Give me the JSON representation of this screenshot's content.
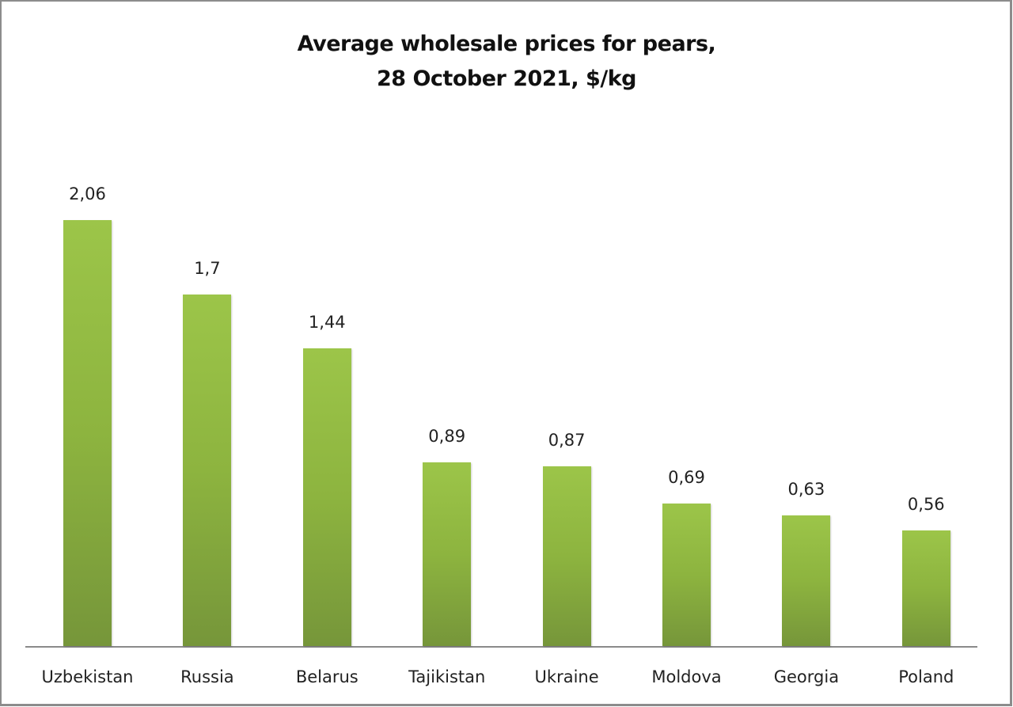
{
  "chart_data": {
    "type": "bar",
    "title": "Average wholesale prices for pears, 28 October 2021, $/kg",
    "title_lines": [
      "Average wholesale prices for pears,",
      "28 October 2021, $/kg"
    ],
    "categories": [
      "Uzbekistan",
      "Russia",
      "Belarus",
      "Tajikistan",
      "Ukraine",
      "Moldova",
      "Georgia",
      "Poland"
    ],
    "values": [
      2.06,
      1.7,
      1.44,
      0.89,
      0.87,
      0.69,
      0.63,
      0.56
    ],
    "value_labels": [
      "2,06",
      "1,7",
      "1,44",
      "0,89",
      "0,87",
      "0,69",
      "0,63",
      "0,56"
    ],
    "xlabel": "",
    "ylabel": "$/kg",
    "ylim": [
      0,
      2.1
    ],
    "grid": false,
    "legend": null,
    "bar_color": "#8db43f"
  }
}
